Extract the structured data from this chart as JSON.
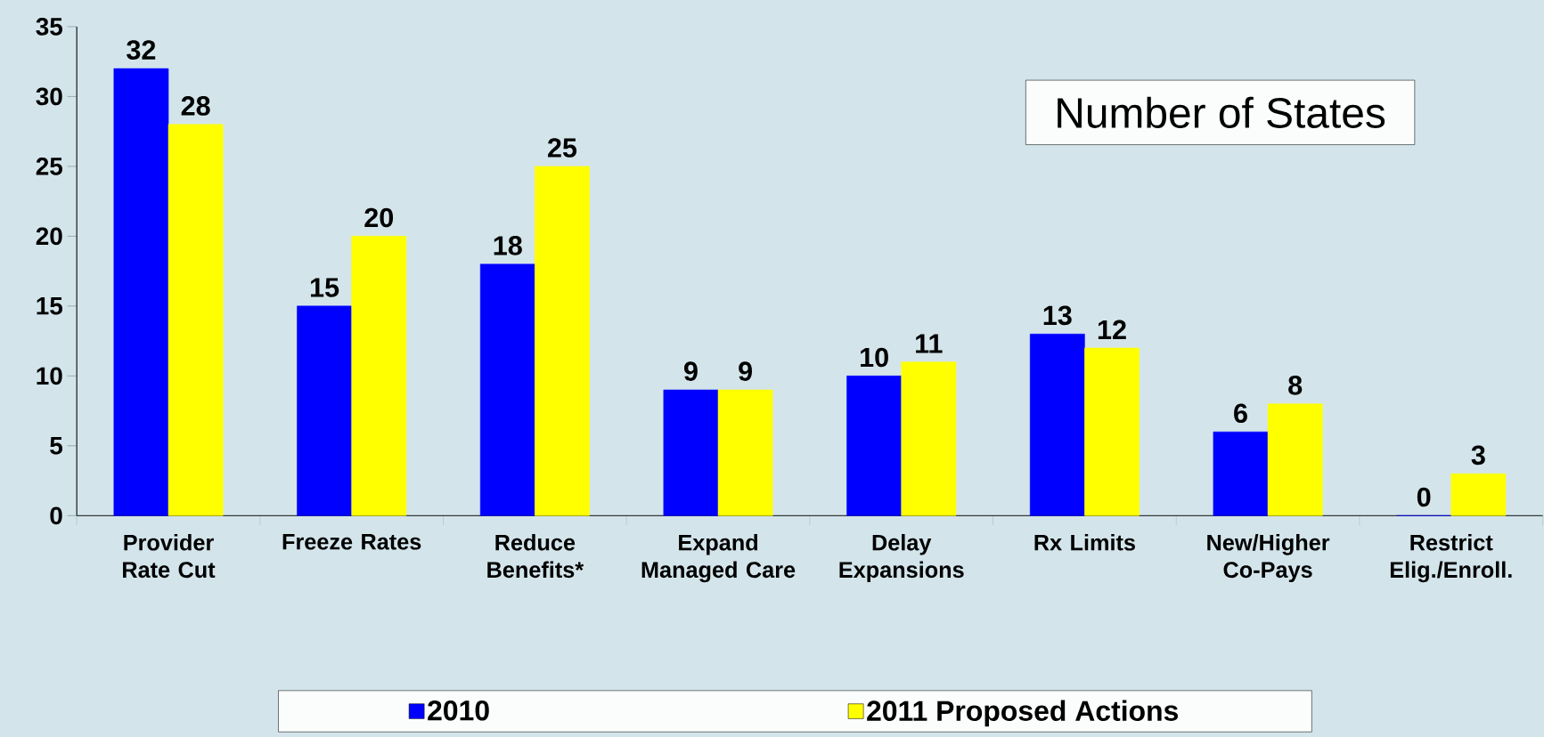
{
  "chart_data": {
    "type": "bar",
    "title": "Number of States",
    "categories": [
      "Provider Rate Cut",
      "Freeze Rates",
      "Reduce Benefits*",
      "Expand Managed Care",
      "Delay Expansions",
      "Rx Limits",
      "New/Higher Co-Pays",
      "Restrict Elig./Enroll."
    ],
    "series": [
      {
        "name": "2010",
        "color": "#0000ff",
        "values": [
          32,
          15,
          18,
          9,
          10,
          13,
          6,
          0
        ]
      },
      {
        "name": "2011 Proposed Actions",
        "color": "#ffff00",
        "values": [
          28,
          20,
          25,
          9,
          11,
          12,
          8,
          3
        ]
      }
    ],
    "ylim": [
      0,
      35
    ],
    "yticks": [
      0,
      5,
      10,
      15,
      20,
      25,
      30,
      35
    ],
    "data_labels": true,
    "legend": "bottom"
  }
}
